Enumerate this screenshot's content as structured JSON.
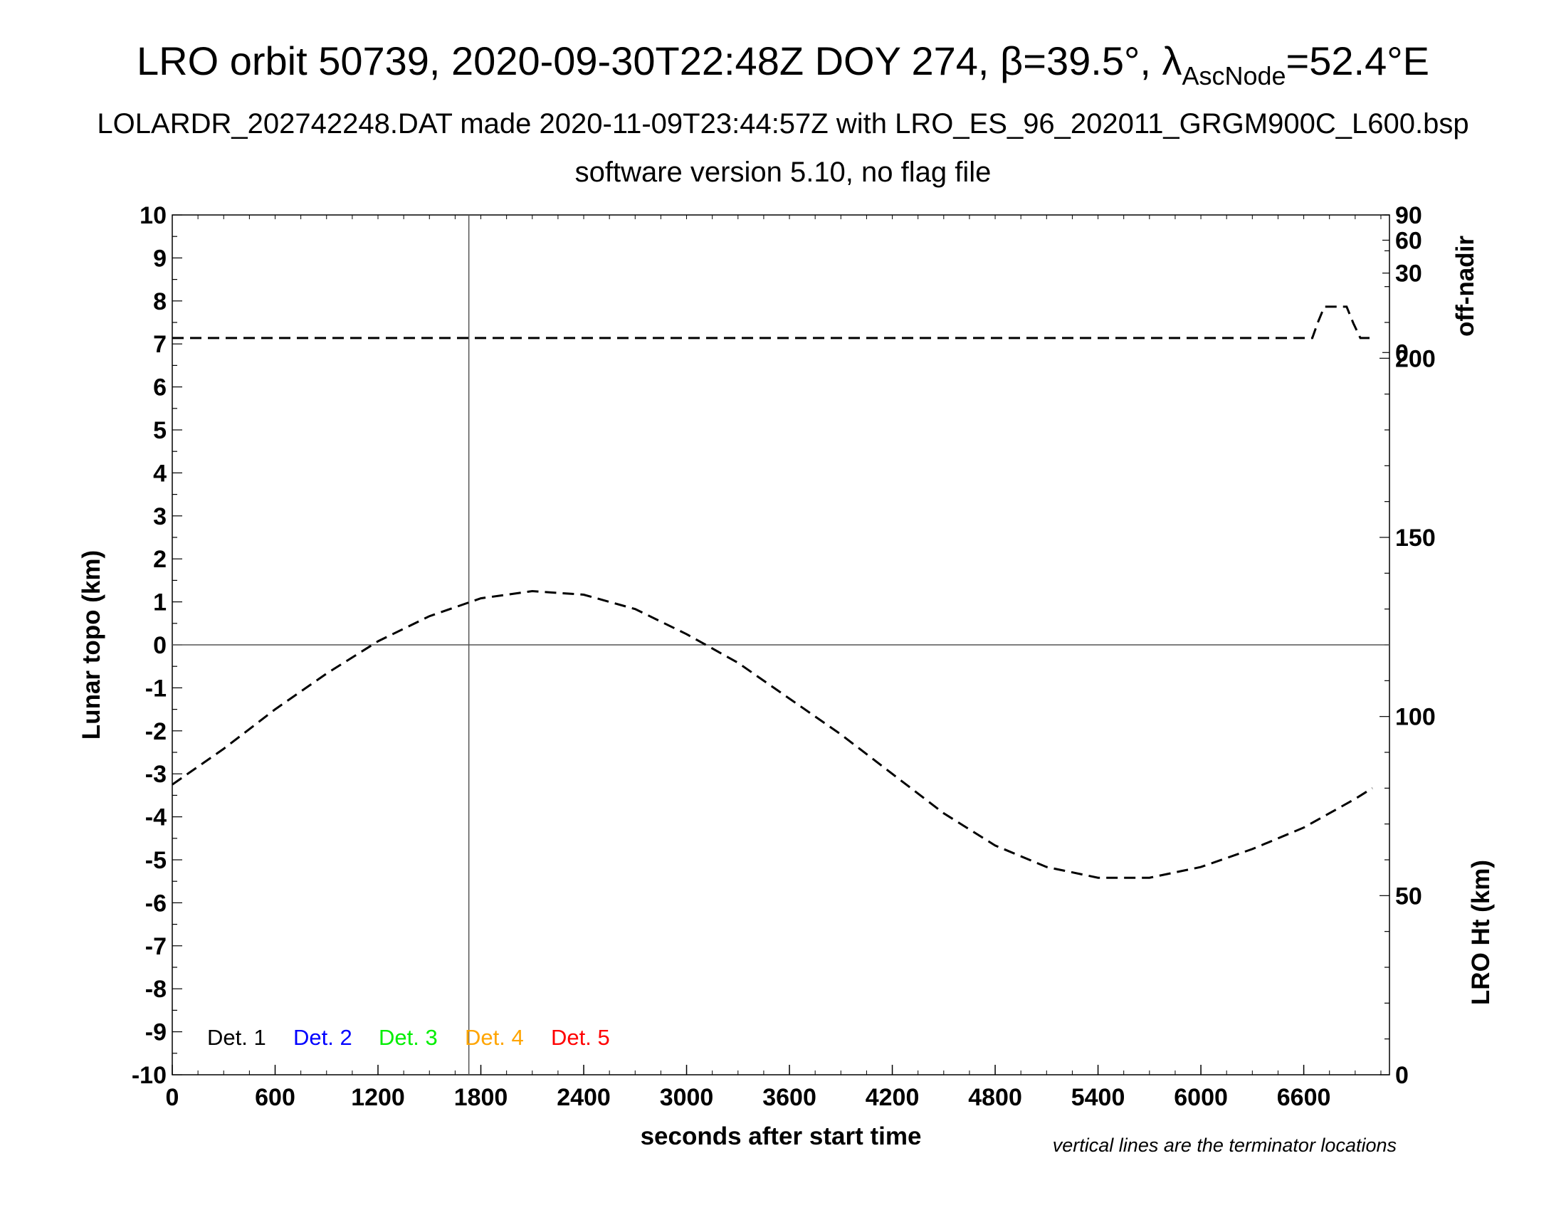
{
  "titles": {
    "main_prefix": "LRO orbit 50739, 2020-09-30T22:48Z DOY 274, β=39.5°, λ",
    "main_sub": "AscNode",
    "main_suffix": "=52.4°E",
    "line2": "LOLARDR_202742248.DAT made 2020-11-09T23:44:57Z with LRO_ES_96_202011_GRGM900C_L600.bsp",
    "line3": "software version 5.10, no flag file"
  },
  "chart_data": {
    "type": "line",
    "xlabel": "seconds after start time",
    "ylabel_left": "Lunar topo (km)",
    "ylabel_right_top": "off-nadir",
    "ylabel_right_bottom": "LRO Ht (km)",
    "note": "vertical lines are the terminator locations",
    "xlim": [
      0,
      7100
    ],
    "x_ticks": [
      "0",
      "600",
      "1200",
      "1800",
      "2400",
      "3000",
      "3600",
      "4200",
      "4800",
      "5400",
      "6000",
      "6600"
    ],
    "ylim_left": [
      -10,
      10
    ],
    "y_ticks_left": [
      "-10",
      "-9",
      "-8",
      "-7",
      "-6",
      "-5",
      "-4",
      "-3",
      "-2",
      "-1",
      "0",
      "1",
      "2",
      "3",
      "4",
      "5",
      "6",
      "7",
      "8",
      "9",
      "10"
    ],
    "right_top_axis": {
      "ticks": [
        "0",
        "30",
        "60",
        "90"
      ]
    },
    "right_bottom_axis": {
      "ylim": [
        0,
        240
      ],
      "ticks": [
        "0",
        "50",
        "100",
        "150",
        "200"
      ]
    },
    "terminator_x": [
      1730
    ],
    "zero_line_y": 0,
    "legend": [
      {
        "label": "Det. 1",
        "color": "#000000"
      },
      {
        "label": "Det. 2",
        "color": "#0000ff"
      },
      {
        "label": "Det. 3",
        "color": "#00ee00"
      },
      {
        "label": "Det. 4",
        "color": "#ffa500"
      },
      {
        "label": "Det. 5",
        "color": "#ff0000"
      }
    ],
    "series": [
      {
        "name": "off-nadir",
        "axis": "right_top",
        "x": [
          0,
          6650,
          6680,
          6720,
          6850,
          6890,
          6930,
          7000
        ],
        "y": [
          1,
          1,
          4,
          10,
          10,
          4,
          1,
          1
        ]
      },
      {
        "name": "LRO Ht (km)",
        "axis": "right_bottom",
        "x": [
          0,
          300,
          600,
          900,
          1200,
          1500,
          1800,
          2100,
          2400,
          2700,
          3000,
          3300,
          3600,
          3900,
          4200,
          4500,
          4800,
          5100,
          5400,
          5700,
          6000,
          6300,
          6600,
          6900,
          7000
        ],
        "y": [
          81,
          91,
          102,
          112,
          121,
          128,
          133,
          135,
          134,
          130,
          123,
          115,
          105,
          95,
          84,
          73,
          64,
          58,
          55,
          55,
          58,
          63,
          69,
          77,
          80
        ]
      }
    ]
  }
}
